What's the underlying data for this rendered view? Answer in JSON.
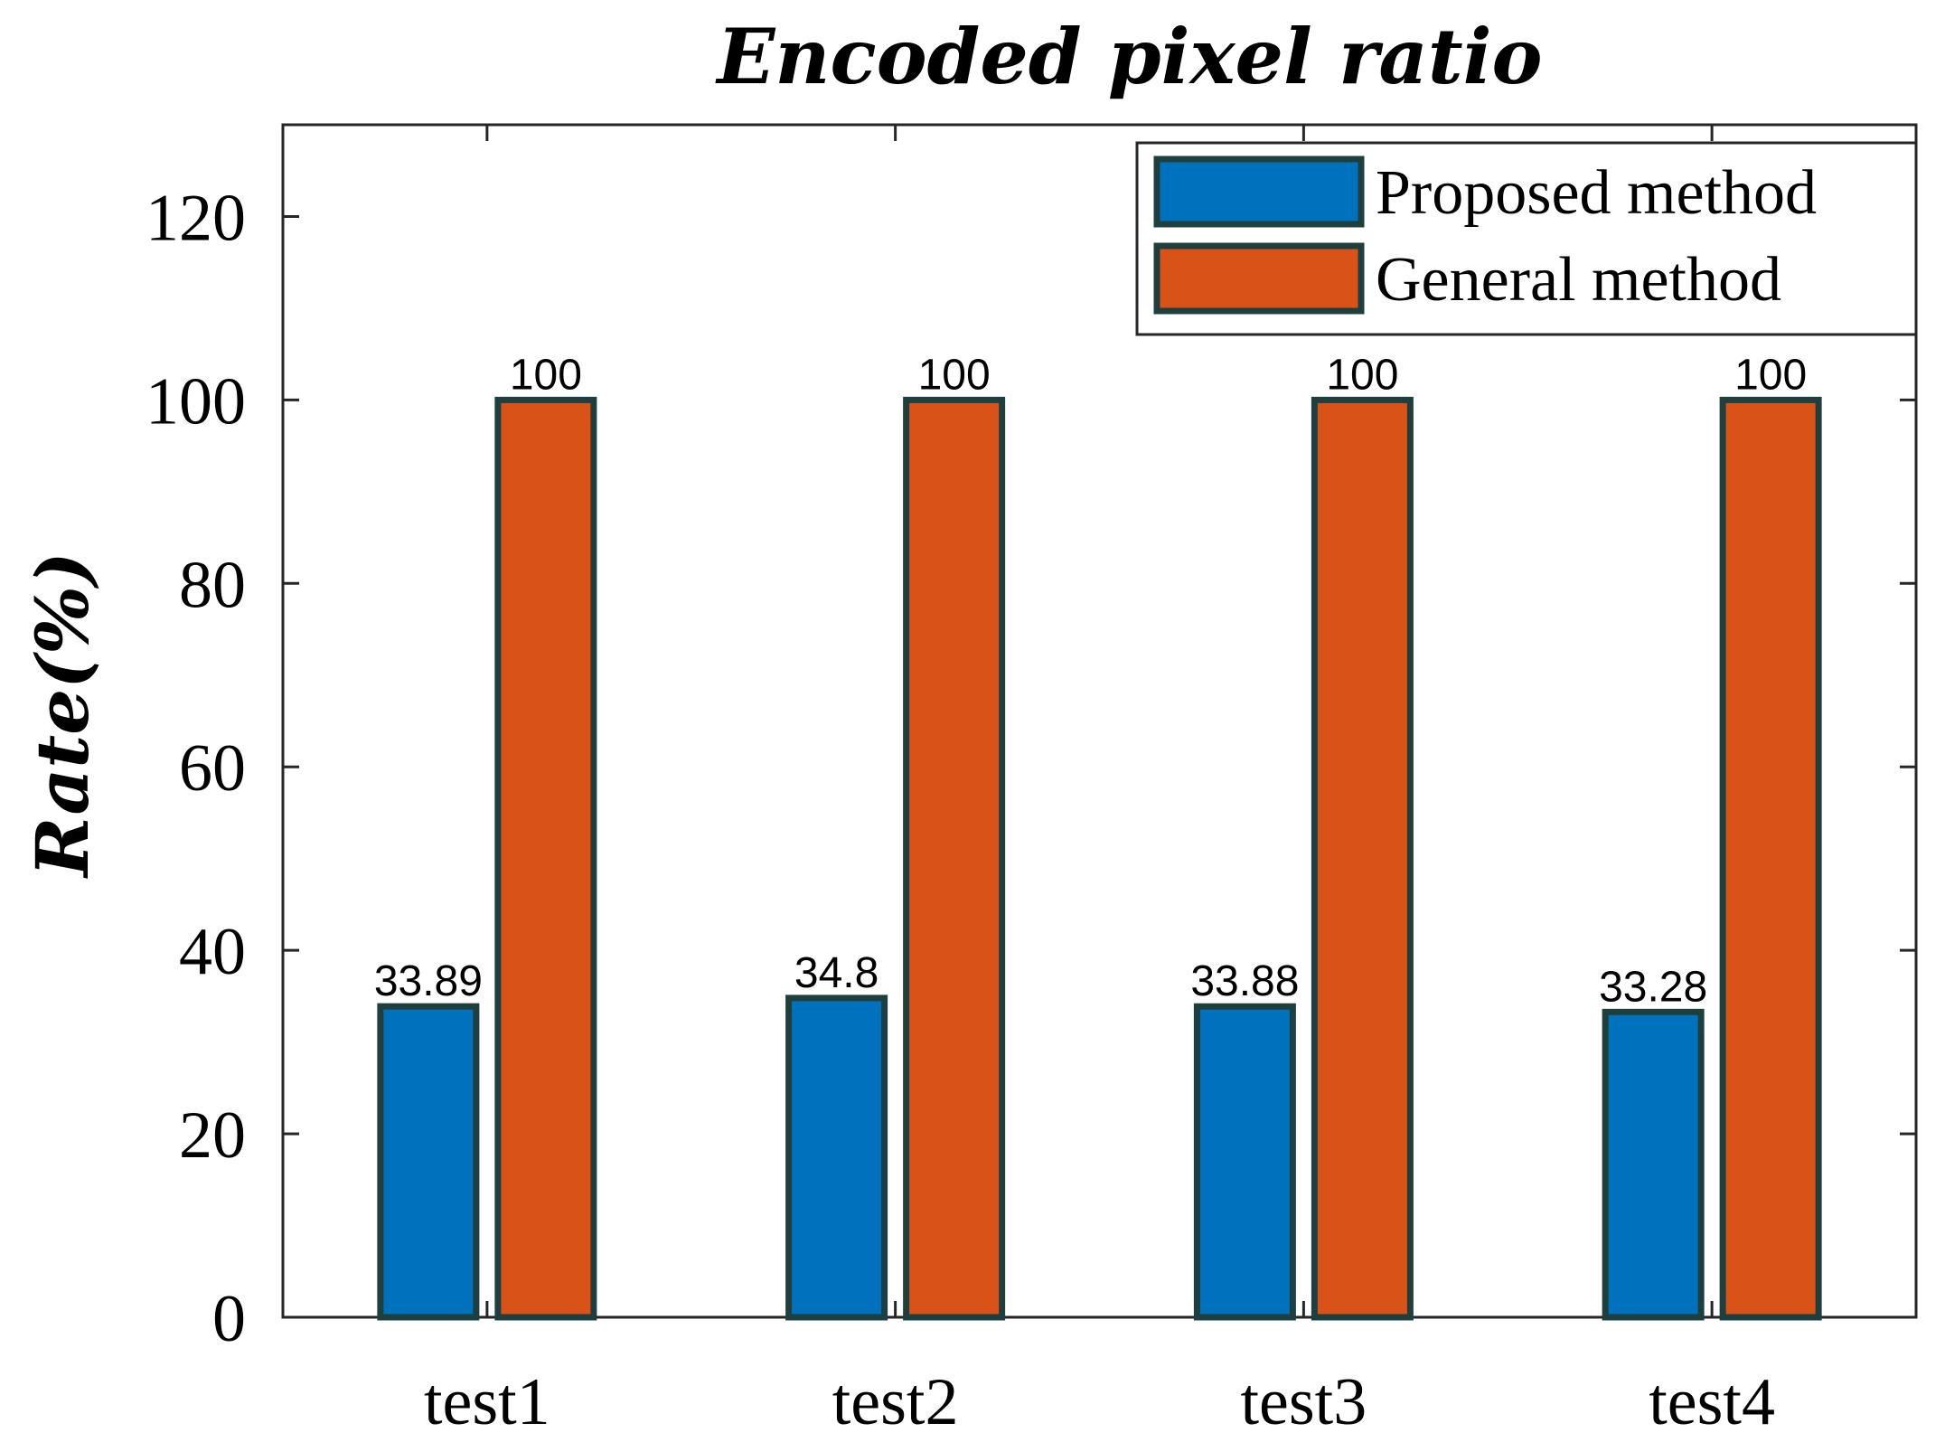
{
  "chart_data": {
    "type": "bar",
    "title": "Encoded pixel ratio",
    "xlabel": "",
    "ylabel": "Rate(%)",
    "categories": [
      "test1",
      "test2",
      "test3",
      "test4"
    ],
    "series": [
      {
        "name": "Proposed method",
        "color": "#0072BD",
        "values": [
          33.89,
          34.8,
          33.88,
          33.28
        ]
      },
      {
        "name": "General method",
        "color": "#D95319",
        "values": [
          100,
          100,
          100,
          100
        ]
      }
    ],
    "ylim": [
      0,
      130
    ],
    "yticks": [
      0,
      20,
      40,
      60,
      80,
      100,
      120
    ],
    "legend_position": "top-right",
    "bar_edge_color": "#1f3f3f",
    "grid": false
  }
}
